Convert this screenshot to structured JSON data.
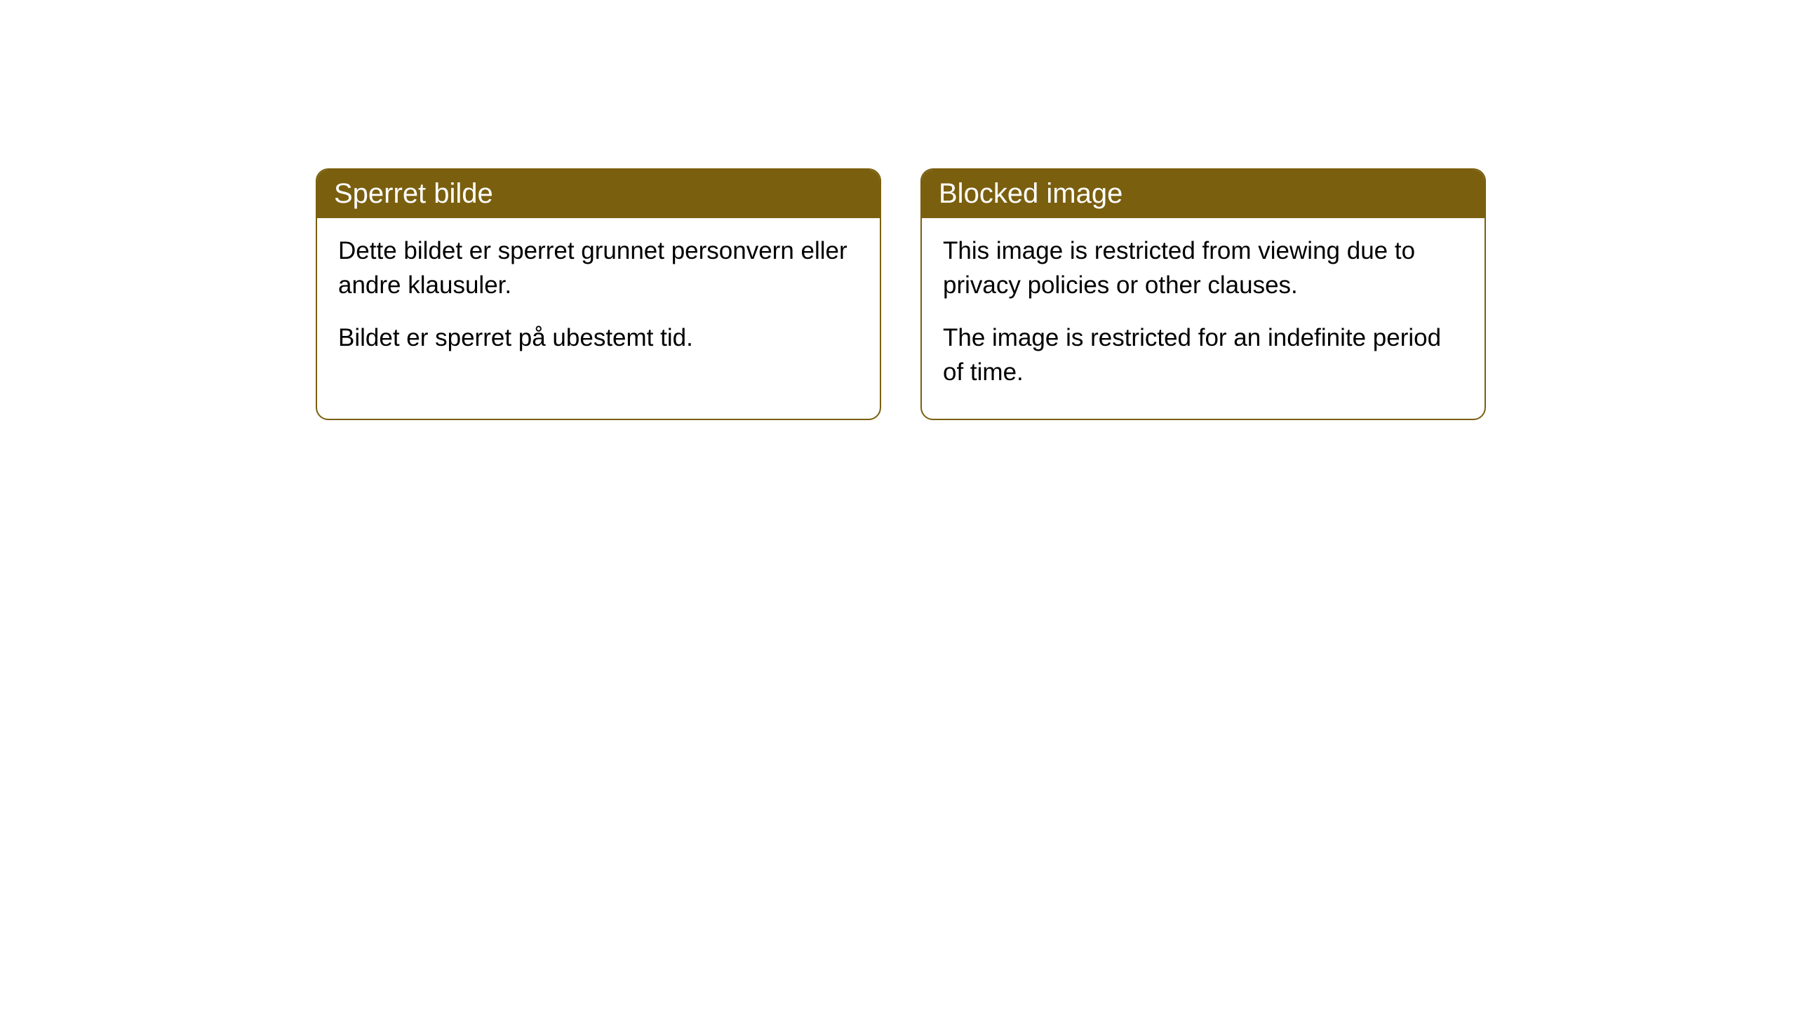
{
  "cards": [
    {
      "title": "Sperret bilde",
      "paragraph1": "Dette bildet er sperret grunnet personvern eller andre klausuler.",
      "paragraph2": "Bildet er sperret på ubestemt tid."
    },
    {
      "title": "Blocked image",
      "paragraph1": "This image is restricted from viewing due to privacy policies or other clauses.",
      "paragraph2": "The image is restricted for an indefinite period of time."
    }
  ],
  "styling": {
    "header_background": "#7a5f0f",
    "header_text_color": "#ffffff",
    "border_color": "#7a5f0f",
    "body_background": "#ffffff",
    "body_text_color": "#000000",
    "border_radius": 18,
    "title_fontsize": 40,
    "body_fontsize": 35
  }
}
